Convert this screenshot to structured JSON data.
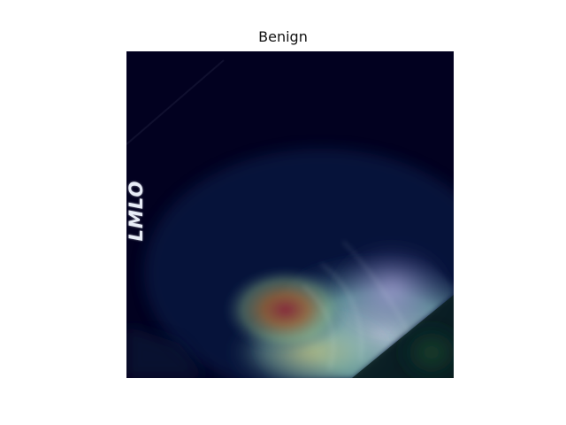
{
  "title": "Benign",
  "image": {
    "view_label": "LMLO",
    "description_colors": {
      "background": "#020120",
      "tissue_highlight": "#9ee8df",
      "heat_core": "#8a2a3a",
      "heat_warm": "#b08a3a"
    }
  }
}
